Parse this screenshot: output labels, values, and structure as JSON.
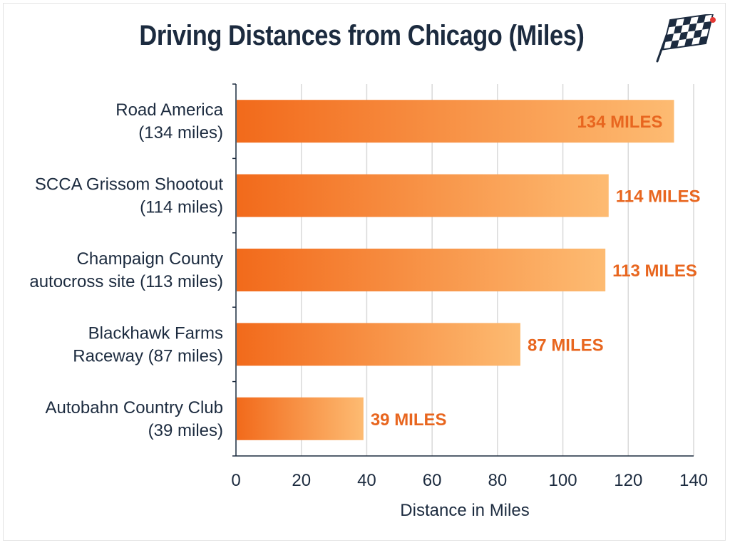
{
  "chart_data": {
    "type": "bar",
    "orientation": "horizontal",
    "title": "Driving Distances from Chicago (Miles)",
    "xlabel": "Distance in Miles",
    "ylabel": "",
    "categories": [
      [
        "Road America",
        "(134 miles)"
      ],
      [
        "SCCA Grissom Shootout",
        "(114 miles)"
      ],
      [
        "Champaign County",
        "autocross site (113 miles)"
      ],
      [
        "Blackhawk Farms",
        "Raceway (87 miles)"
      ],
      [
        "Autobahn Country Club",
        "(39 miles)"
      ]
    ],
    "values": [
      134,
      114,
      113,
      87,
      39
    ],
    "data_labels": [
      "134 MILES",
      "114 MILES",
      "113 MILES",
      "87 MILES",
      "39 MILES"
    ],
    "xlim": [
      0,
      140
    ],
    "xticks": [
      0,
      20,
      40,
      60,
      80,
      100,
      120,
      140
    ],
    "grid": true,
    "colors": {
      "bar_start": "#f26a1b",
      "bar_end": "#fdbb72",
      "label": "#e8661f",
      "text": "#1c2b3f",
      "grid": "#d9d9d9"
    }
  }
}
